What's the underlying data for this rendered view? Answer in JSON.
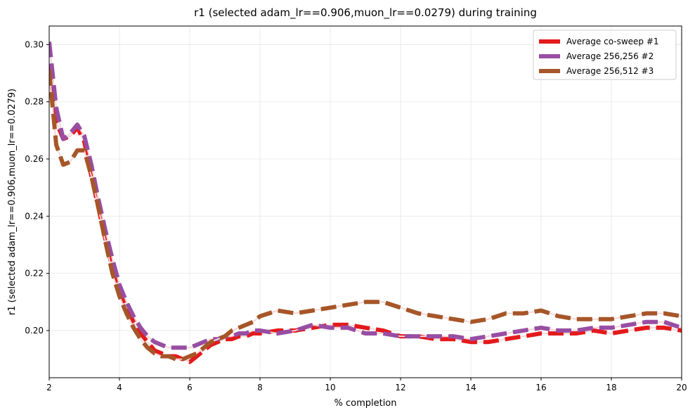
{
  "chart_data": {
    "type": "line",
    "title": "r1 (selected adam_lr==0.906,muon_lr==0.0279) during training",
    "xlabel": "% completion",
    "ylabel": "r1 (selected adam_lr==0.906,muon_lr==0.0279)",
    "xlim": [
      2,
      20
    ],
    "ylim": [
      0.1835,
      0.3065
    ],
    "xticks": [
      "2",
      "4",
      "6",
      "8",
      "10",
      "12",
      "14",
      "16",
      "18",
      "20"
    ],
    "yticks": [
      "0.20",
      "0.22",
      "0.24",
      "0.26",
      "0.28",
      "0.30"
    ],
    "grid": true,
    "legend_position": "top-right",
    "series": [
      {
        "name": "Average co-sweep #1",
        "color": "#e41a1c",
        "x": [
          2.0,
          2.2,
          2.4,
          2.6,
          2.8,
          3.0,
          3.2,
          3.4,
          3.6,
          3.8,
          4.0,
          4.2,
          4.4,
          4.6,
          4.8,
          5.0,
          5.2,
          5.4,
          5.6,
          5.8,
          6.0,
          6.2,
          6.4,
          6.6,
          6.8,
          7.0,
          7.2,
          7.4,
          7.6,
          7.8,
          8.0,
          8.5,
          9.0,
          9.5,
          10.0,
          10.5,
          11.0,
          11.5,
          12.0,
          12.5,
          13.0,
          13.5,
          14.0,
          14.5,
          15.0,
          15.5,
          16.0,
          16.5,
          17.0,
          17.5,
          18.0,
          18.5,
          19.0,
          19.5,
          20.0
        ],
        "values": [
          0.293,
          0.273,
          0.267,
          0.268,
          0.271,
          0.266,
          0.254,
          0.243,
          0.232,
          0.222,
          0.214,
          0.208,
          0.203,
          0.199,
          0.196,
          0.193,
          0.192,
          0.191,
          0.191,
          0.19,
          0.189,
          0.191,
          0.193,
          0.195,
          0.196,
          0.197,
          0.197,
          0.198,
          0.198,
          0.199,
          0.199,
          0.2,
          0.2,
          0.201,
          0.202,
          0.202,
          0.201,
          0.2,
          0.198,
          0.198,
          0.197,
          0.197,
          0.196,
          0.196,
          0.197,
          0.198,
          0.199,
          0.199,
          0.199,
          0.2,
          0.199,
          0.2,
          0.201,
          0.201,
          0.2
        ]
      },
      {
        "name": "Average 256,256 #2",
        "color": "#984ea3",
        "x": [
          2.0,
          2.2,
          2.4,
          2.6,
          2.8,
          3.0,
          3.2,
          3.4,
          3.6,
          3.8,
          4.0,
          4.2,
          4.4,
          4.6,
          4.8,
          5.0,
          5.2,
          5.4,
          5.6,
          5.8,
          6.0,
          6.2,
          6.4,
          6.6,
          6.8,
          7.0,
          7.2,
          7.4,
          7.6,
          7.8,
          8.0,
          8.5,
          9.0,
          9.5,
          10.0,
          10.5,
          11.0,
          11.5,
          12.0,
          12.5,
          13.0,
          13.5,
          14.0,
          14.5,
          15.0,
          15.5,
          16.0,
          16.5,
          17.0,
          17.5,
          18.0,
          18.5,
          19.0,
          19.5,
          20.0
        ],
        "values": [
          0.301,
          0.278,
          0.267,
          0.269,
          0.272,
          0.268,
          0.258,
          0.246,
          0.235,
          0.225,
          0.216,
          0.21,
          0.205,
          0.201,
          0.198,
          0.196,
          0.195,
          0.194,
          0.194,
          0.194,
          0.194,
          0.195,
          0.196,
          0.197,
          0.197,
          0.198,
          0.198,
          0.199,
          0.199,
          0.2,
          0.2,
          0.199,
          0.2,
          0.202,
          0.201,
          0.201,
          0.199,
          0.199,
          0.198,
          0.198,
          0.198,
          0.198,
          0.197,
          0.198,
          0.199,
          0.2,
          0.201,
          0.2,
          0.2,
          0.201,
          0.201,
          0.202,
          0.203,
          0.203,
          0.201
        ]
      },
      {
        "name": "Average 256,512 #3",
        "color": "#a65628",
        "x": [
          2.0,
          2.2,
          2.4,
          2.6,
          2.8,
          3.0,
          3.2,
          3.4,
          3.6,
          3.8,
          4.0,
          4.2,
          4.4,
          4.6,
          4.8,
          5.0,
          5.2,
          5.4,
          5.6,
          5.8,
          6.0,
          6.2,
          6.4,
          6.6,
          6.8,
          7.0,
          7.2,
          7.4,
          7.6,
          7.8,
          8.0,
          8.5,
          9.0,
          9.5,
          10.0,
          10.5,
          11.0,
          11.5,
          12.0,
          12.5,
          13.0,
          13.5,
          14.0,
          14.5,
          15.0,
          15.5,
          16.0,
          16.5,
          17.0,
          17.5,
          18.0,
          18.5,
          19.0,
          19.5,
          20.0
        ],
        "values": [
          0.291,
          0.265,
          0.258,
          0.259,
          0.263,
          0.263,
          0.254,
          0.243,
          0.231,
          0.22,
          0.212,
          0.206,
          0.201,
          0.197,
          0.194,
          0.192,
          0.191,
          0.191,
          0.19,
          0.19,
          0.191,
          0.192,
          0.194,
          0.196,
          0.197,
          0.198,
          0.2,
          0.201,
          0.202,
          0.203,
          0.205,
          0.207,
          0.206,
          0.207,
          0.208,
          0.209,
          0.21,
          0.21,
          0.208,
          0.206,
          0.205,
          0.204,
          0.203,
          0.204,
          0.206,
          0.206,
          0.207,
          0.205,
          0.204,
          0.204,
          0.204,
          0.205,
          0.206,
          0.206,
          0.205
        ]
      }
    ]
  }
}
